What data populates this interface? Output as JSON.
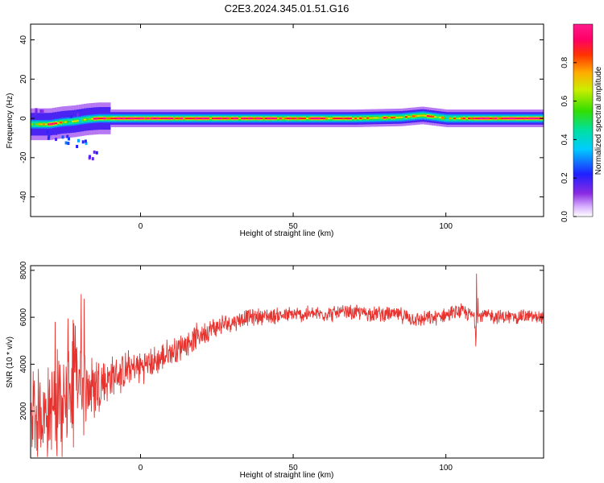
{
  "title": "C2E3.2024.345.01.51.G16",
  "colors": {
    "snr_line": "#e8322e",
    "axis": "#000000"
  },
  "chart_data": [
    {
      "type": "heatmap",
      "xlabel": "Height of straight line (km)",
      "ylabel": "Frequency (Hz)",
      "xlim": [
        -36,
        132
      ],
      "ylim": [
        -50,
        48
      ],
      "xticks": [
        "0",
        "50",
        "100"
      ],
      "xtick_values": [
        0,
        50,
        100
      ],
      "yticks": [
        "40",
        "20",
        "0",
        "-20",
        "-40"
      ],
      "ytick_values": [
        40,
        20,
        0,
        -20,
        -40
      ],
      "colorbar": {
        "label": "Normalized spectral amplitude",
        "ticks": [
          "0.0",
          "0.2",
          "0.4",
          "0.6",
          "0.8"
        ],
        "tick_values": [
          0.0,
          0.2,
          0.4,
          0.6,
          0.8
        ],
        "range": [
          0,
          1
        ],
        "colormap": "rainbow (violet-blue-cyan-green-yellow-orange-red-magenta)"
      },
      "ridge": {
        "description": "narrow band of high amplitude near 0 Hz across all heights",
        "frequency_hz": 0,
        "points": [
          {
            "x": -34,
            "f": -3.0,
            "amp": 0.55
          },
          {
            "x": -30,
            "f": -3.0,
            "amp": 0.9
          },
          {
            "x": -26,
            "f": -2.0,
            "amp": 0.7
          },
          {
            "x": -22,
            "f": -1.5,
            "amp": 0.55
          },
          {
            "x": -18,
            "f": -0.5,
            "amp": 0.6
          },
          {
            "x": -14,
            "f": 0.0,
            "amp": 0.9
          },
          {
            "x": -5,
            "f": 0.0,
            "amp": 0.95
          },
          {
            "x": 10,
            "f": 0.0,
            "amp": 0.95
          },
          {
            "x": 30,
            "f": 0.0,
            "amp": 0.9
          },
          {
            "x": 50,
            "f": 0.0,
            "amp": 0.9
          },
          {
            "x": 70,
            "f": 0.0,
            "amp": 0.8
          },
          {
            "x": 85,
            "f": 0.5,
            "amp": 0.7
          },
          {
            "x": 92,
            "f": 1.5,
            "amp": 0.85
          },
          {
            "x": 100,
            "f": 0.0,
            "amp": 0.6
          },
          {
            "x": 110,
            "f": 0.0,
            "amp": 0.95
          },
          {
            "x": 132,
            "f": 0.0,
            "amp": 0.95
          }
        ],
        "low_height_spread": [
          {
            "x": -30,
            "f": -8,
            "amp": 0.2
          },
          {
            "x": -25,
            "f": -10,
            "amp": 0.25
          },
          {
            "x": -20,
            "f": -12,
            "amp": 0.3
          },
          {
            "x": -16,
            "f": -18,
            "amp": 0.2
          },
          {
            "x": -33,
            "f": 4,
            "amp": 0.15
          },
          {
            "x": -22,
            "f": 3,
            "amp": 0.2
          }
        ]
      }
    },
    {
      "type": "line",
      "xlabel": "Height of straight line (km)",
      "ylabel": "SNR (10 * v/v)",
      "xlim": [
        -36,
        132
      ],
      "ylim": [
        0,
        8200
      ],
      "xticks": [
        "0",
        "50",
        "100"
      ],
      "xtick_values": [
        0,
        50,
        100
      ],
      "yticks": [
        "8000",
        "6000",
        "4000",
        "2000"
      ],
      "ytick_values": [
        8000,
        6000,
        4000,
        2000
      ],
      "series": [
        {
          "trend_x": [
            -36,
            -30,
            -25,
            -20,
            -15,
            -10,
            -5,
            0,
            5,
            10,
            15,
            20,
            25,
            30,
            35,
            40,
            50,
            60,
            70,
            80,
            85,
            90,
            95,
            100,
            105,
            108,
            110,
            112,
            115,
            120,
            125,
            132
          ],
          "trend_y": [
            1800,
            2000,
            2400,
            3000,
            3000,
            3400,
            3700,
            3900,
            4100,
            4500,
            4900,
            5300,
            5600,
            5800,
            6000,
            6050,
            6100,
            6150,
            6200,
            6150,
            6100,
            5900,
            5950,
            6100,
            6250,
            6100,
            6000,
            6100,
            6050,
            6000,
            6050,
            6000
          ],
          "noise_amp_x": [
            -36,
            -25,
            -15,
            -10,
            0,
            20,
            35,
            132
          ],
          "noise_amp_y": [
            1800,
            2200,
            1600,
            900,
            700,
            500,
            350,
            300
          ]
        }
      ]
    }
  ]
}
